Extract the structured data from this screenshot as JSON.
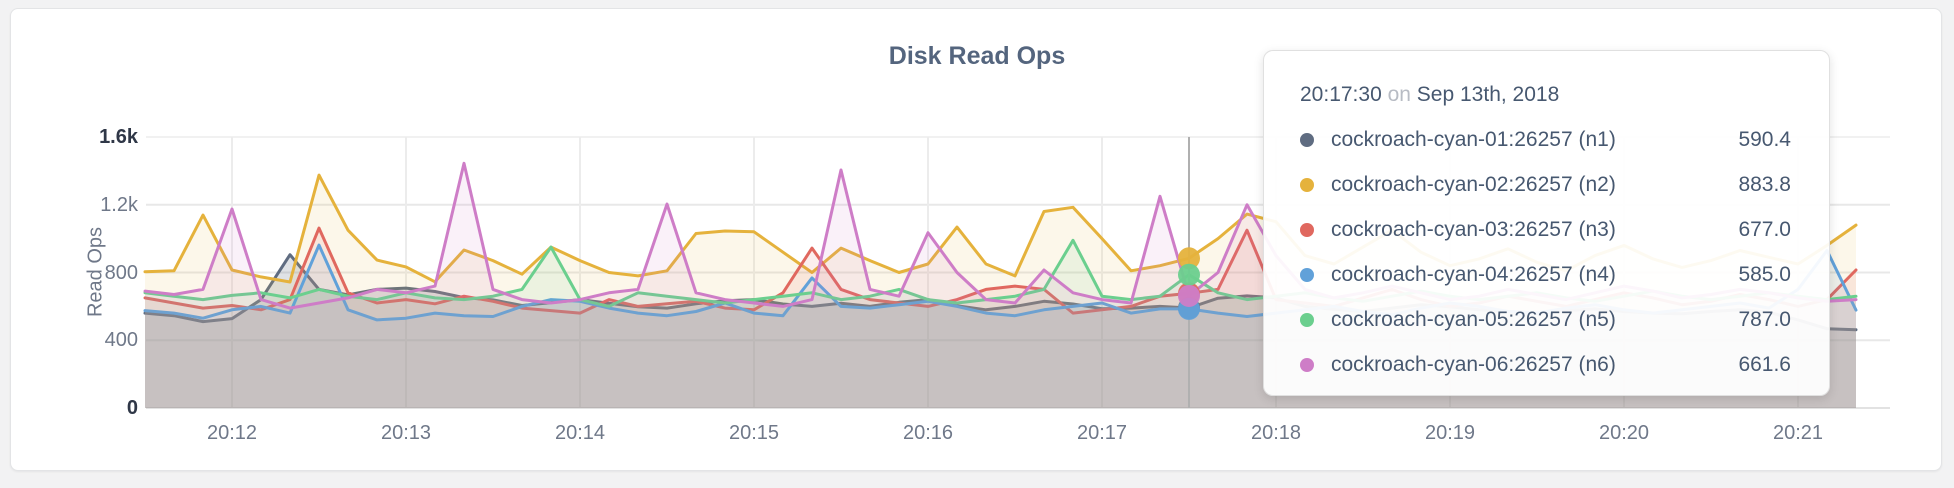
{
  "tooltip": {
    "time": "20:17:30",
    "connector": "on",
    "date": "Sep 13th, 2018",
    "rows": [
      {
        "series": "n1",
        "name": "cockroach-cyan-01:26257 (n1)",
        "value": "590.4",
        "color": "#5f6c81"
      },
      {
        "series": "n2",
        "name": "cockroach-cyan-02:26257 (n2)",
        "value": "883.8",
        "color": "#e5b23c"
      },
      {
        "series": "n3",
        "name": "cockroach-cyan-03:26257 (n3)",
        "value": "677.0",
        "color": "#e0685f"
      },
      {
        "series": "n4",
        "name": "cockroach-cyan-04:26257 (n4)",
        "value": "585.0",
        "color": "#61a1d9"
      },
      {
        "series": "n5",
        "name": "cockroach-cyan-05:26257 (n5)",
        "value": "787.0",
        "color": "#6bcf8e"
      },
      {
        "series": "n6",
        "name": "cockroach-cyan-06:26257 (n6)",
        "value": "661.6",
        "color": "#ce7dc7"
      }
    ]
  },
  "chart_data": {
    "type": "area",
    "title": "Disk Read Ops",
    "ylabel": "Read Ops",
    "ylim": [
      0,
      1600
    ],
    "grid": true,
    "x_start_time": "20:11:30",
    "x_interval_seconds": 10,
    "x_points": 60,
    "x_tick_labels": [
      "20:12",
      "20:13",
      "20:14",
      "20:15",
      "20:16",
      "20:17",
      "20:18",
      "20:19",
      "20:20",
      "20:21"
    ],
    "y_ticks": [
      {
        "v": 0,
        "label": "0",
        "emphasis": true
      },
      {
        "v": 400,
        "label": "400",
        "emphasis": false
      },
      {
        "v": 800,
        "label": "800",
        "emphasis": false
      },
      {
        "v": 1200,
        "label": "1.2k",
        "emphasis": false
      },
      {
        "v": 1600,
        "label": "1.6k",
        "emphasis": true
      }
    ],
    "hover": {
      "time": "20:17:30",
      "date": "Sep 13th, 2018",
      "values": {
        "n1": 590.4,
        "n2": 883.8,
        "n3": 677.0,
        "n4": 585.0,
        "n5": 787.0,
        "n6": 661.6
      }
    },
    "series": [
      {
        "id": "n1",
        "name": "cockroach-cyan-01:26257 (n1)",
        "color": "#5f6c81",
        "fill_opacity": 0.2,
        "values": [
          560,
          545,
          510,
          528,
          640,
          905,
          700,
          668,
          700,
          708,
          688,
          652,
          638,
          605,
          622,
          640,
          618,
          598,
          590,
          615,
          633,
          640,
          614,
          600,
          618,
          600,
          624,
          640,
          604,
          580,
          600,
          630,
          614,
          586,
          590,
          600,
          590.4,
          648,
          662,
          650,
          600,
          582,
          570,
          590,
          610,
          598,
          580,
          570,
          560,
          575,
          585,
          570,
          560,
          556,
          570,
          580,
          565,
          520,
          468,
          462
        ]
      },
      {
        "id": "n2",
        "name": "cockroach-cyan-02:26257 (n2)",
        "color": "#e5b23c",
        "fill_opacity": 0.11,
        "values": [
          805,
          810,
          1139,
          815,
          774,
          744,
          1375,
          1050,
          873,
          833,
          745,
          933,
          870,
          790,
          950,
          870,
          800,
          780,
          810,
          1030,
          1045,
          1040,
          920,
          800,
          944,
          870,
          800,
          850,
          1068,
          850,
          780,
          1160,
          1185,
          1000,
          810,
          840,
          883.8,
          1000,
          1145,
          1100,
          900,
          850,
          950,
          1050,
          920,
          840,
          880,
          940,
          860,
          810,
          900,
          960,
          880,
          830,
          870,
          930,
          890,
          850,
          960,
          1080
        ]
      },
      {
        "id": "n3",
        "name": "cockroach-cyan-03:26257 (n3)",
        "color": "#e0685f",
        "fill_opacity": 0.11,
        "values": [
          650,
          620,
          590,
          605,
          580,
          640,
          1062,
          680,
          620,
          640,
          615,
          660,
          630,
          590,
          575,
          560,
          640,
          600,
          615,
          630,
          590,
          580,
          680,
          944,
          700,
          640,
          620,
          600,
          640,
          700,
          720,
          700,
          560,
          580,
          600,
          660,
          677,
          700,
          1050,
          640,
          620,
          600,
          650,
          700,
          640,
          600,
          620,
          660,
          630,
          600,
          640,
          680,
          650,
          610,
          630,
          670,
          640,
          600,
          640,
          815
        ]
      },
      {
        "id": "n4",
        "name": "cockroach-cyan-04:26257 (n4)",
        "color": "#61a1d9",
        "fill_opacity": 0.11,
        "values": [
          575,
          560,
          530,
          580,
          600,
          560,
          962,
          580,
          520,
          530,
          560,
          545,
          540,
          600,
          640,
          630,
          590,
          560,
          545,
          570,
          620,
          560,
          545,
          768,
          600,
          590,
          610,
          630,
          600,
          560,
          545,
          580,
          600,
          620,
          560,
          585,
          585,
          560,
          540,
          560,
          580,
          600,
          570,
          550,
          590,
          620,
          600,
          570,
          560,
          590,
          610,
          580,
          560,
          580,
          600,
          620,
          590,
          700,
          930,
          578
        ]
      },
      {
        "id": "n5",
        "name": "cockroach-cyan-05:26257 (n5)",
        "color": "#6bcf8e",
        "fill_opacity": 0.11,
        "values": [
          680,
          660,
          640,
          665,
          680,
          650,
          700,
          660,
          640,
          680,
          650,
          640,
          660,
          700,
          950,
          640,
          600,
          680,
          660,
          640,
          620,
          640,
          660,
          680,
          640,
          660,
          700,
          640,
          620,
          640,
          660,
          700,
          990,
          660,
          640,
          660,
          787,
          680,
          640,
          660,
          680,
          650,
          630,
          660,
          690,
          660,
          640,
          660,
          680,
          650,
          630,
          660,
          690,
          660,
          640,
          660,
          680,
          660,
          640,
          660
        ]
      },
      {
        "id": "n6",
        "name": "cockroach-cyan-06:26257 (n6)",
        "color": "#ce7dc7",
        "fill_opacity": 0.11,
        "values": [
          690,
          670,
          700,
          1175,
          640,
          590,
          620,
          650,
          700,
          680,
          720,
          1445,
          700,
          640,
          620,
          640,
          680,
          700,
          1204,
          680,
          640,
          620,
          600,
          640,
          1405,
          700,
          660,
          1035,
          800,
          640,
          620,
          815,
          680,
          640,
          620,
          1250,
          661.6,
          800,
          1200,
          900,
          700,
          650,
          680,
          720,
          680,
          640,
          660,
          700,
          670,
          640,
          680,
          720,
          690,
          650,
          670,
          700,
          680,
          650,
          630,
          640
        ]
      }
    ]
  }
}
